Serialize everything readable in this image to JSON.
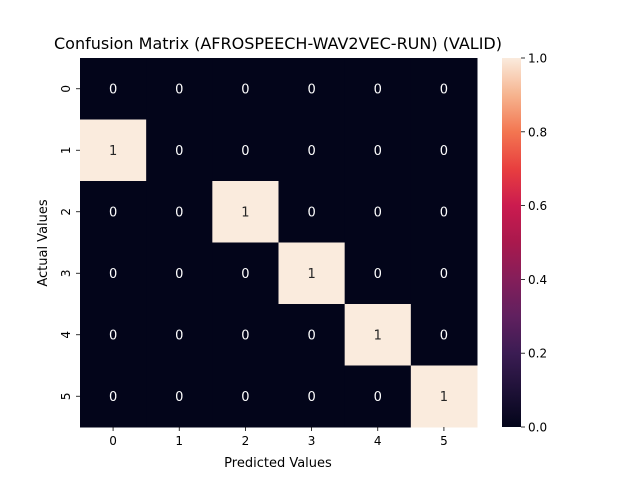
{
  "chart_data": {
    "type": "heatmap",
    "title": "Confusion Matrix (AFROSPEECH-WAV2VEC-RUN) (VALID)",
    "xlabel": "Predicted Values",
    "ylabel": "Actual Values",
    "x_categories": [
      "0",
      "1",
      "2",
      "3",
      "4",
      "5"
    ],
    "y_categories": [
      "0",
      "1",
      "2",
      "3",
      "4",
      "5"
    ],
    "values": [
      [
        0,
        0,
        0,
        0,
        0,
        0
      ],
      [
        1,
        0,
        0,
        0,
        0,
        0
      ],
      [
        0,
        0,
        1,
        0,
        0,
        0
      ],
      [
        0,
        0,
        0,
        1,
        0,
        0
      ],
      [
        0,
        0,
        0,
        0,
        1,
        0
      ],
      [
        0,
        0,
        0,
        0,
        0,
        1
      ]
    ],
    "colorbar": {
      "range": [
        0,
        1
      ],
      "ticks": [
        "0.0",
        "0.2",
        "0.4",
        "0.6",
        "0.8",
        "1.0"
      ],
      "low_color": "#03051a",
      "high_color": "#faebdd"
    }
  }
}
